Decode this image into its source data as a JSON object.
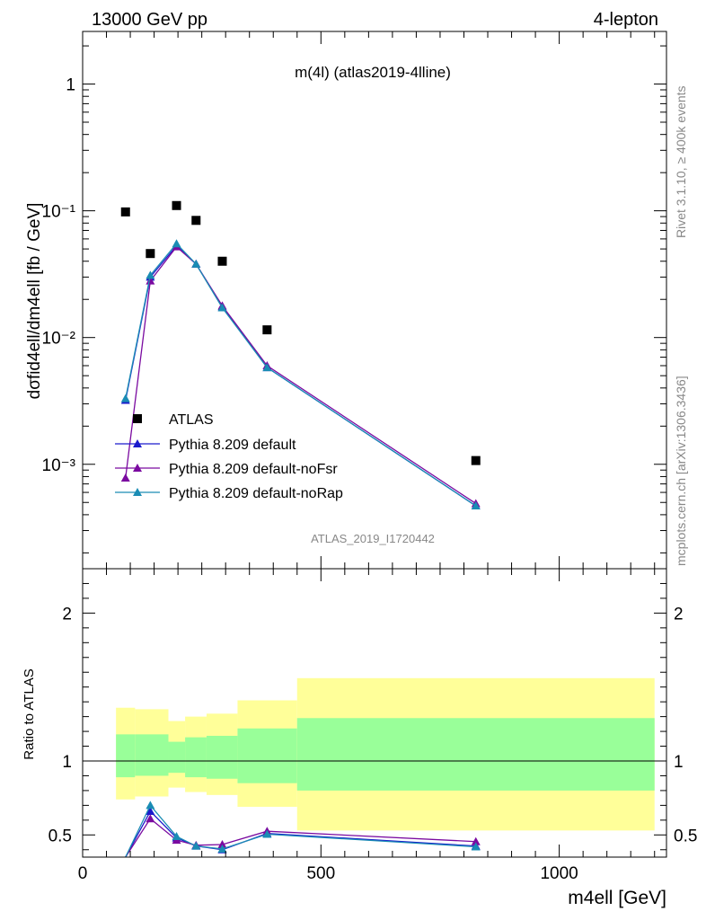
{
  "header": {
    "left": "13000 GeV pp",
    "right": "4-lepton"
  },
  "side_labels": {
    "rivet": "Rivet 3.1.10, ≥ 400k events",
    "mcplots": "mcplots.cern.ch [arXiv:1306.3436]"
  },
  "plot_title": "m(4l) (atlas2019-4lline)",
  "watermark": "ATLAS_2019_I1720442",
  "y_axis_label": "dσfid4ell/dm4ell [fb / GeV]",
  "ratio_axis_label": "Ratio to ATLAS",
  "x_axis_label": "m4ell [GeV]",
  "colors": {
    "data": "#000000",
    "default": "#1a1acc",
    "noFsr": "#7a0aa0",
    "noRap": "#1a8cb4",
    "band_inner": "#99ff99",
    "band_outer": "#ffff99"
  },
  "chart_data": [
    {
      "type": "scatter",
      "panel": "main",
      "yscale": "log",
      "xlim": [
        0,
        1225
      ],
      "ylim": [
        0.00015,
        2.6
      ],
      "y_ticks": [
        {
          "value": 1,
          "label": "1"
        },
        {
          "value": 0.1,
          "label": "10⁻¹"
        },
        {
          "value": 0.01,
          "label": "10⁻²"
        },
        {
          "value": 0.001,
          "label": "10⁻³"
        }
      ],
      "legend_position": "bottom-left",
      "series": [
        {
          "name": "ATLAS",
          "marker": "square",
          "x": [
            90,
            142,
            197,
            238,
            293,
            387,
            825
          ],
          "y": [
            0.098,
            0.046,
            0.11,
            0.084,
            0.04,
            0.0115,
            0.00107
          ]
        },
        {
          "name": "Pythia 8.209 default",
          "marker": "triangle",
          "x": [
            90,
            142,
            197,
            238,
            293,
            387,
            825
          ],
          "y": [
            0.0032,
            0.03,
            0.053,
            0.038,
            0.0175,
            0.0058,
            0.00047
          ]
        },
        {
          "name": "Pythia 8.209 default-noFsr",
          "marker": "triangle",
          "x": [
            90,
            142,
            197,
            238,
            293,
            387,
            825
          ],
          "y": [
            0.00078,
            0.028,
            0.052,
            0.038,
            0.0178,
            0.006,
            0.00049
          ]
        },
        {
          "name": "Pythia 8.209 default-noRap",
          "marker": "triangle",
          "x": [
            90,
            142,
            197,
            238,
            293,
            387,
            825
          ],
          "y": [
            0.0033,
            0.031,
            0.055,
            0.038,
            0.0172,
            0.0058,
            0.00047
          ]
        }
      ]
    },
    {
      "type": "line",
      "panel": "ratio",
      "xlim": [
        0,
        1225
      ],
      "ylim": [
        0.35,
        2.3
      ],
      "x_ticks": [
        {
          "value": 0,
          "label": "0"
        },
        {
          "value": 500,
          "label": "500"
        },
        {
          "value": 1000,
          "label": "1000"
        }
      ],
      "y_ticks": [
        {
          "value": 0.5,
          "label": "0.5"
        },
        {
          "value": 1,
          "label": "1"
        },
        {
          "value": 2,
          "label": "2"
        }
      ],
      "bands": [
        {
          "x0": 70,
          "x1": 110,
          "inner": [
            0.89,
            1.18
          ],
          "outer": [
            0.74,
            1.36
          ]
        },
        {
          "x0": 110,
          "x1": 180,
          "inner": [
            0.9,
            1.18
          ],
          "outer": [
            0.76,
            1.35
          ]
        },
        {
          "x0": 180,
          "x1": 215,
          "inner": [
            0.92,
            1.13
          ],
          "outer": [
            0.82,
            1.27
          ]
        },
        {
          "x0": 215,
          "x1": 260,
          "inner": [
            0.89,
            1.16
          ],
          "outer": [
            0.79,
            1.3
          ]
        },
        {
          "x0": 260,
          "x1": 325,
          "inner": [
            0.88,
            1.17
          ],
          "outer": [
            0.77,
            1.32
          ]
        },
        {
          "x0": 325,
          "x1": 450,
          "inner": [
            0.85,
            1.22
          ],
          "outer": [
            0.69,
            1.41
          ]
        },
        {
          "x0": 450,
          "x1": 1200,
          "inner": [
            0.8,
            1.29
          ],
          "outer": [
            0.53,
            1.56
          ]
        }
      ],
      "series": [
        {
          "name": "Pythia 8.209 default",
          "x": [
            90,
            142,
            197,
            238,
            293,
            387,
            825
          ],
          "y": [
            0.033,
            0.66,
            0.48,
            0.425,
            0.4,
            0.51,
            0.425
          ]
        },
        {
          "name": "Pythia 8.209 default-noFsr",
          "x": [
            90,
            142,
            197,
            238,
            293,
            387,
            825
          ],
          "y": [
            0.008,
            0.61,
            0.465,
            0.43,
            0.435,
            0.525,
            0.455
          ]
        },
        {
          "name": "Pythia 8.209 default-noRap",
          "x": [
            90,
            142,
            197,
            238,
            293,
            387,
            825
          ],
          "y": [
            0.034,
            0.7,
            0.49,
            0.425,
            0.405,
            0.505,
            0.42
          ]
        }
      ]
    }
  ]
}
